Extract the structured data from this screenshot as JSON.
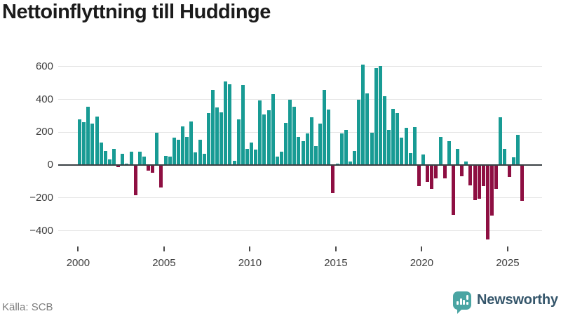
{
  "title": "Nettoinflyttning till Huddinge",
  "source": "Källa: SCB",
  "branding": {
    "name": "Newsworthy",
    "icon": "newsworthy-speech-bubble-bar-chart-icon"
  },
  "chart_data": {
    "type": "bar",
    "title": "Nettoinflyttning till Huddinge",
    "frequency": "quarterly",
    "start": "2000Q1",
    "values": [
      275,
      260,
      355,
      250,
      295,
      135,
      85,
      30,
      95,
      -10,
      65,
      5,
      80,
      -180,
      80,
      50,
      -30,
      -45,
      195,
      -135,
      55,
      50,
      165,
      150,
      235,
      170,
      265,
      75,
      150,
      65,
      315,
      455,
      350,
      320,
      505,
      490,
      25,
      275,
      485,
      95,
      135,
      90,
      390,
      305,
      330,
      430,
      50,
      80,
      255,
      395,
      355,
      170,
      145,
      190,
      290,
      115,
      250,
      455,
      335,
      -170,
      5,
      190,
      210,
      20,
      85,
      395,
      610,
      435,
      195,
      590,
      600,
      415,
      210,
      340,
      315,
      165,
      225,
      70,
      230,
      -125,
      60,
      -100,
      -145,
      -80,
      170,
      -80,
      145,
      -300,
      95,
      -65,
      20,
      -120,
      -210,
      -205,
      -125,
      -450,
      -305,
      -145,
      290,
      95,
      -70,
      45,
      180,
      -215
    ],
    "y_ticks": [
      {
        "value": 600,
        "label": "600"
      },
      {
        "value": 400,
        "label": "400"
      },
      {
        "value": 200,
        "label": "200"
      },
      {
        "value": 0,
        "label": "0"
      },
      {
        "value": -200,
        "label": "−200"
      },
      {
        "value": -400,
        "label": "−400"
      }
    ],
    "x_ticks": [
      {
        "year": 2000,
        "label": "2000"
      },
      {
        "year": 2005,
        "label": "2005"
      },
      {
        "year": 2010,
        "label": "2010"
      },
      {
        "year": 2015,
        "label": "2015"
      },
      {
        "year": 2020,
        "label": "2020"
      },
      {
        "year": 2025,
        "label": "2025"
      }
    ],
    "ylim": [
      -470,
      650
    ],
    "grid": true,
    "legend": null,
    "colors": {
      "positive": "#189b94",
      "negative": "#8e0f42",
      "zero_line": "#3a4144",
      "grid_line": "#e4e4e4"
    }
  }
}
